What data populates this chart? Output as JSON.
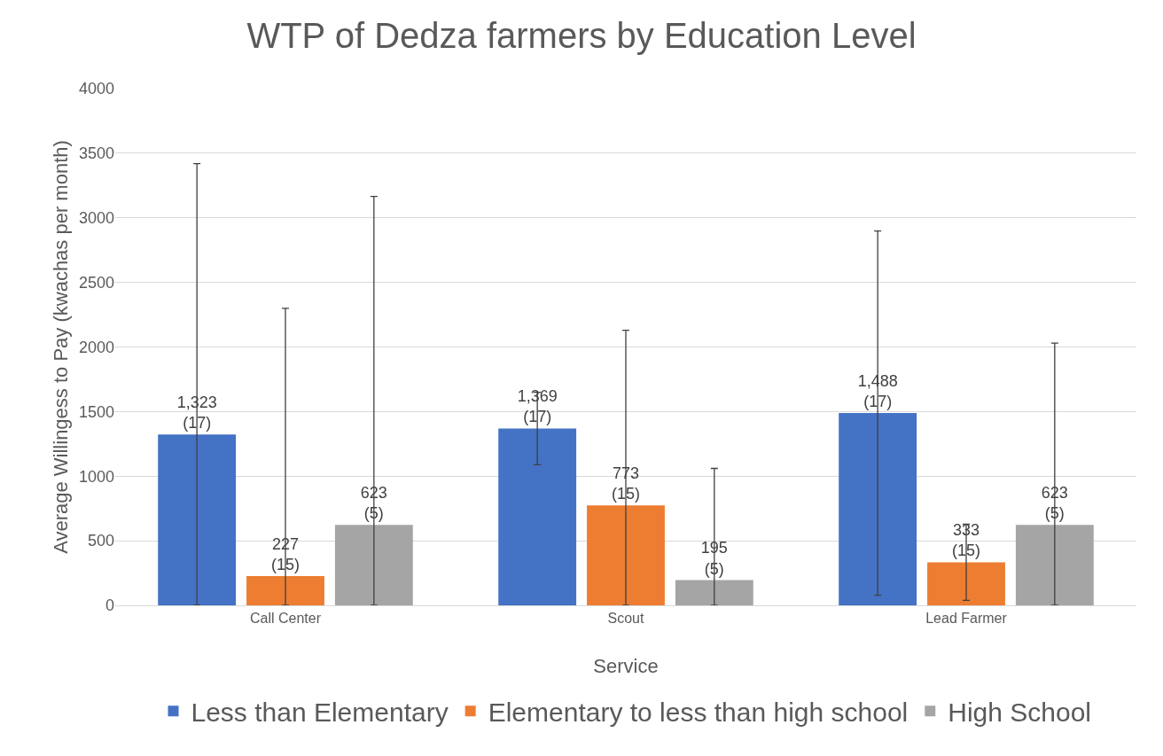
{
  "chart_data": {
    "type": "bar",
    "title": "WTP of Dedza farmers by Education Level",
    "xlabel": "Service",
    "ylabel": "Average Willingess to Pay (kwachas per month)",
    "categories": [
      "Call Center",
      "Scout",
      "Lead Farmer"
    ],
    "series": [
      {
        "name": "Less than Elementary",
        "color": "#4472c4",
        "values": [
          1323,
          1369,
          1488
        ],
        "errors": [
          [
            0,
            3420
          ],
          280,
          1410
        ],
        "value_labels": [
          "1,323\n(17)",
          "1,369\n(17)",
          "1,488\n(17)"
        ]
      },
      {
        "name": "Elementary to less than high school",
        "color": "#ed7d31",
        "values": [
          227,
          773,
          333
        ],
        "errors": [
          [
            0,
            2300
          ],
          [
            0,
            2130
          ],
          295
        ],
        "value_labels": [
          "227\n(15)",
          "773\n(15)",
          "333\n(15)"
        ]
      },
      {
        "name": "High School",
        "color": "#a5a5a5",
        "values": [
          623,
          195,
          623
        ],
        "errors": [
          [
            0,
            3165
          ],
          [
            0,
            1060
          ],
          [
            0,
            2030
          ]
        ],
        "value_labels": [
          "623\n(5)",
          "195\n(5)",
          "623\n(5)"
        ]
      }
    ],
    "ylim": [
      0,
      4000
    ],
    "yticks": [
      0,
      500,
      1000,
      1500,
      2000,
      2500,
      3000,
      3500,
      4000
    ],
    "grid": "y",
    "legend": "bottom"
  }
}
